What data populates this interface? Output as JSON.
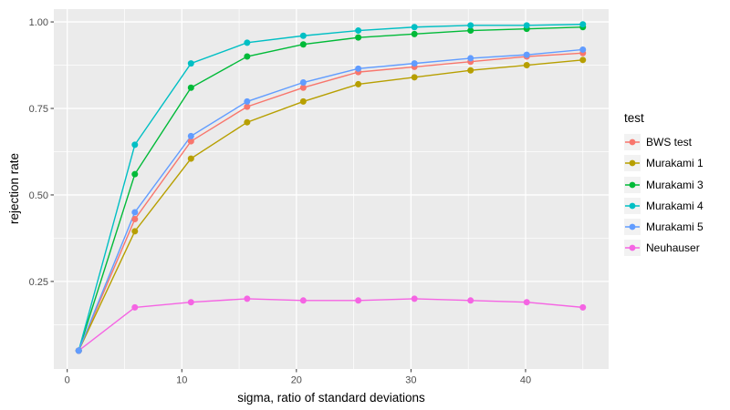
{
  "figure": {
    "background": "#FFFFFF",
    "panel_background": "#EBEBEB",
    "grid_color": "#FFFFFF",
    "tick_color": "#333333",
    "axis_text_color": "#4D4D4D",
    "legend_key_background": "#F2F2F2"
  },
  "chart_data": {
    "type": "line",
    "title": "",
    "xlabel": "sigma, ratio of standard deviations",
    "ylabel": "rejection rate",
    "legend_title": "test",
    "legend_position": "right",
    "grid": true,
    "xlim": [
      -1.17,
      47.25
    ],
    "ylim": [
      -0.003,
      1.037
    ],
    "x_ticks": [
      0,
      10,
      20,
      30,
      40
    ],
    "x_tick_labels": [
      "0",
      "10",
      "20",
      "30",
      "40"
    ],
    "x_minor_ticks": [
      5,
      15,
      25,
      35,
      45
    ],
    "y_ticks": [
      0.25,
      0.5,
      0.75,
      1.0
    ],
    "y_tick_labels": [
      "0.25",
      "0.50",
      "0.75",
      "1.00"
    ],
    "y_minor_ticks": [
      0.125,
      0.375,
      0.625,
      0.875
    ],
    "x": [
      1,
      5.9,
      10.8,
      15.7,
      20.6,
      25.4,
      30.3,
      35.2,
      40.1,
      45
    ],
    "series": [
      {
        "name": "BWS test",
        "color": "#F8766D",
        "values": [
          0.05,
          0.43,
          0.655,
          0.755,
          0.81,
          0.855,
          0.87,
          0.885,
          0.9,
          0.91
        ]
      },
      {
        "name": "Murakami 1",
        "color": "#B79F00",
        "values": [
          0.05,
          0.395,
          0.605,
          0.71,
          0.77,
          0.82,
          0.84,
          0.86,
          0.875,
          0.89
        ]
      },
      {
        "name": "Murakami 3",
        "color": "#00BA38",
        "values": [
          0.05,
          0.56,
          0.81,
          0.9,
          0.935,
          0.955,
          0.965,
          0.975,
          0.98,
          0.985
        ]
      },
      {
        "name": "Murakami 4",
        "color": "#00BFC4",
        "values": [
          0.05,
          0.645,
          0.88,
          0.94,
          0.96,
          0.975,
          0.985,
          0.99,
          0.99,
          0.993
        ]
      },
      {
        "name": "Murakami 5",
        "color": "#619CFF",
        "values": [
          0.05,
          0.45,
          0.67,
          0.77,
          0.825,
          0.865,
          0.88,
          0.895,
          0.905,
          0.92
        ]
      },
      {
        "name": "Neuhauser",
        "color": "#F564E3",
        "values": [
          0.05,
          0.175,
          0.19,
          0.2,
          0.195,
          0.195,
          0.2,
          0.195,
          0.19,
          0.175
        ]
      }
    ]
  }
}
